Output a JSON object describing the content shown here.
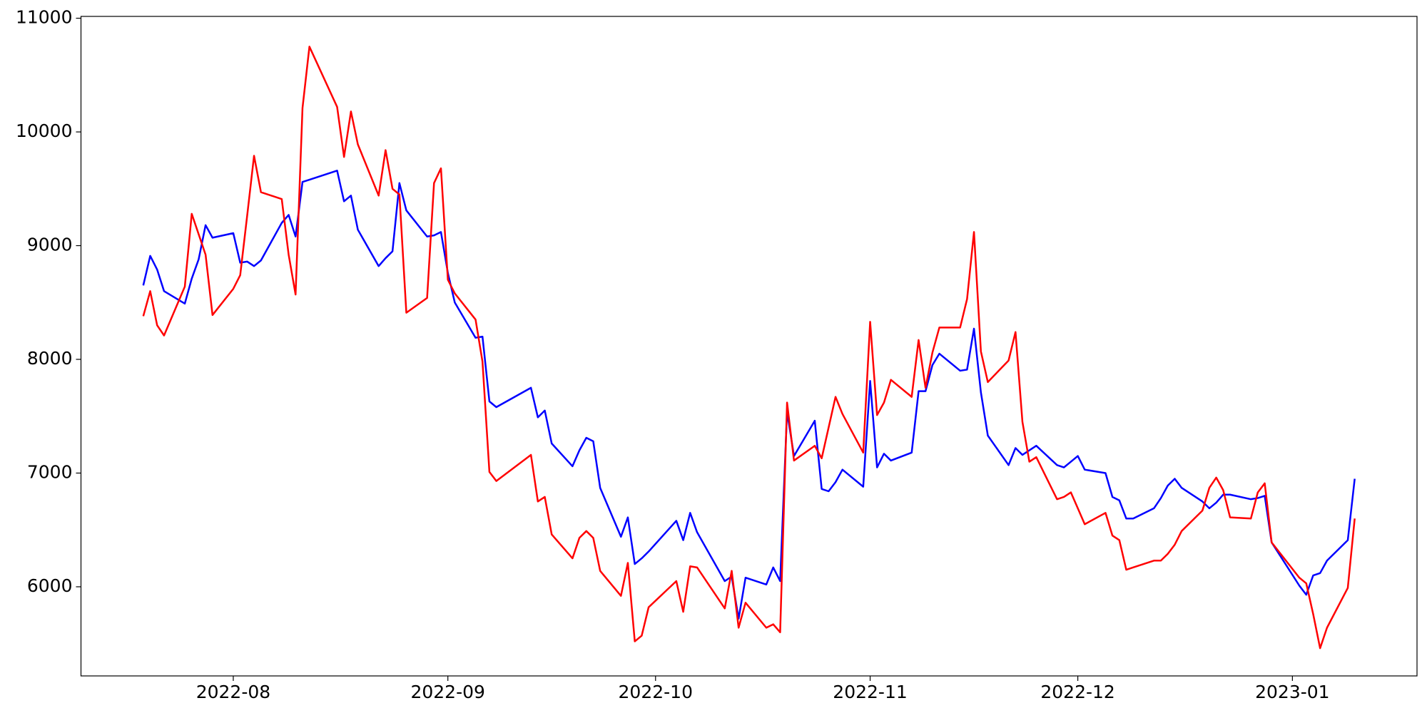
{
  "chart_data": {
    "type": "line",
    "x": [
      19192,
      19193,
      19194,
      19195,
      19198,
      19199,
      19200,
      19201,
      19202,
      19205,
      19206,
      19207,
      19208,
      19209,
      19212,
      19213,
      19214,
      19215,
      19216,
      19220,
      19221,
      19222,
      19223,
      19226,
      19227,
      19228,
      19229,
      19230,
      19233,
      19234,
      19235,
      19236,
      19237,
      19240,
      19241,
      19242,
      19243,
      19248,
      19249,
      19250,
      19251,
      19254,
      19255,
      19256,
      19257,
      19258,
      19261,
      19262,
      19263,
      19264,
      19265,
      19269,
      19270,
      19271,
      19272,
      19276,
      19277,
      19278,
      19279,
      19282,
      19283,
      19284,
      19285,
      19286,
      19289,
      19290,
      19291,
      19292,
      19293,
      19296,
      19297,
      19298,
      19299,
      19300,
      19303,
      19304,
      19305,
      19306,
      19307,
      19310,
      19311,
      19312,
      19313,
      19314,
      19317,
      19318,
      19319,
      19320,
      19321,
      19324,
      19325,
      19326,
      19327,
      19328,
      19331,
      19332,
      19333,
      19334,
      19335,
      19338,
      19339,
      19340,
      19341,
      19342,
      19345,
      19346,
      19347,
      19348,
      19349,
      19352,
      19353,
      19354,
      19355,
      19359,
      19360,
      19361,
      19362,
      19363,
      19366,
      19367
    ],
    "series": [
      {
        "color": "blue",
        "values": [
          8650,
          8910,
          8790,
          8600,
          8490,
          8710,
          8880,
          9180,
          9070,
          9110,
          8850,
          8860,
          8820,
          8870,
          9200,
          9270,
          9080,
          9560,
          9580,
          9660,
          9390,
          9440,
          9140,
          8820,
          8890,
          8950,
          9550,
          9310,
          9080,
          9090,
          9120,
          8760,
          8500,
          8190,
          8200,
          7630,
          7580,
          7750,
          7490,
          7550,
          7260,
          7060,
          7200,
          7310,
          7280,
          6870,
          6440,
          6610,
          6200,
          6250,
          6310,
          6580,
          6410,
          6650,
          6480,
          6050,
          6090,
          5720,
          6080,
          6020,
          6170,
          6050,
          7540,
          7150,
          7460,
          6860,
          6840,
          6920,
          7030,
          6880,
          7810,
          7050,
          7170,
          7110,
          7180,
          7720,
          7720,
          7950,
          8050,
          7900,
          7910,
          8270,
          7710,
          7330,
          7070,
          7220,
          7160,
          7200,
          7240,
          7070,
          7050,
          7100,
          7150,
          7030,
          7000,
          6790,
          6760,
          6600,
          6600,
          6690,
          6780,
          6890,
          6950,
          6870,
          6750,
          6690,
          6740,
          6810,
          6810,
          6770,
          6780,
          6800,
          6390,
          6010,
          5930,
          6100,
          6120,
          6230,
          6410,
          6950
        ]
      },
      {
        "color": "red",
        "values": [
          8380,
          8600,
          8300,
          8210,
          8640,
          9280,
          9100,
          8920,
          8390,
          8620,
          8740,
          9260,
          9790,
          9470,
          9410,
          8920,
          8570,
          10210,
          10750,
          10220,
          9780,
          10180,
          9890,
          9440,
          9840,
          9500,
          9450,
          8410,
          8540,
          9550,
          9680,
          8700,
          8580,
          8350,
          7980,
          7010,
          6930,
          7160,
          6750,
          6790,
          6460,
          6250,
          6430,
          6490,
          6430,
          6140,
          5920,
          6210,
          5520,
          5570,
          5820,
          6050,
          5780,
          6180,
          6170,
          5810,
          6140,
          5640,
          5860,
          5640,
          5670,
          5600,
          7620,
          7110,
          7240,
          7130,
          7400,
          7670,
          7520,
          7180,
          8330,
          7510,
          7620,
          7820,
          7670,
          8170,
          7750,
          8060,
          8280,
          8280,
          8530,
          9120,
          8070,
          7800,
          7990,
          8240,
          7450,
          7100,
          7140,
          6770,
          6790,
          6830,
          6690,
          6550,
          6650,
          6450,
          6410,
          6150,
          6170,
          6230,
          6230,
          6290,
          6370,
          6490,
          6670,
          6870,
          6960,
          6850,
          6610,
          6600,
          6830,
          6910,
          6390,
          6080,
          6030,
          5760,
          5460,
          5640,
          5990,
          6600
        ]
      }
    ],
    "xlim": [
      19183,
      19376
    ],
    "xticks": [
      {
        "value": 19205,
        "label": "2022-08"
      },
      {
        "value": 19236,
        "label": "2022-09"
      },
      {
        "value": 19266,
        "label": "2022-10"
      },
      {
        "value": 19297,
        "label": "2022-11"
      },
      {
        "value": 19327,
        "label": "2022-12"
      },
      {
        "value": 19358,
        "label": "2023-01"
      }
    ],
    "ylim": [
      5216,
      11016
    ],
    "yticks": [
      6000,
      7000,
      8000,
      9000,
      10000,
      11000
    ],
    "line_width": 2.5
  }
}
